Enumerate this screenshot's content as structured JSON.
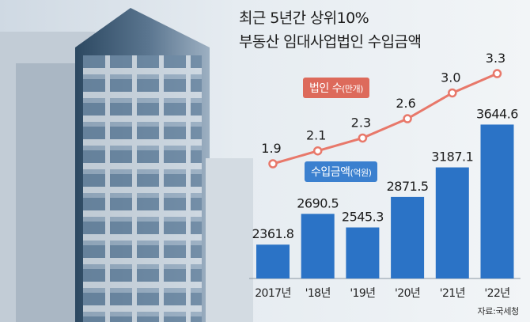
{
  "title": [
    "최근 5년간 상위10%",
    "부동산 임대사업법인 수입금액"
  ],
  "source": "자료:국세청",
  "colors": {
    "bar": "#2b73c6",
    "line": "#e8786a",
    "line_legend_bg": "#dd6a5b",
    "bar_legend_bg": "#3b80cf"
  },
  "chart_data": {
    "type": "bar",
    "categories": [
      "2017년",
      "'18년",
      "'19년",
      "'20년",
      "'21년",
      "'22년"
    ],
    "series": [
      {
        "name": "수입금액(억원)",
        "type": "bar",
        "values": [
          2361.8,
          2690.5,
          2545.3,
          2871.5,
          3187.1,
          3644.6
        ],
        "labels": [
          "2361.8",
          "2690.5",
          "2545.3",
          "2871.5",
          "3187.1",
          "3644.6"
        ]
      },
      {
        "name": "법인 수(만개)",
        "type": "line",
        "values": [
          1.9,
          2.1,
          2.3,
          2.6,
          3.0,
          3.3
        ],
        "labels": [
          "1.9",
          "2.1",
          "2.3",
          "2.6",
          "3.0",
          "3.3"
        ]
      }
    ],
    "legend": [
      {
        "label": "법인 수",
        "unit": "(만개)"
      },
      {
        "label": "수입금액",
        "unit": "(억원)"
      }
    ]
  }
}
